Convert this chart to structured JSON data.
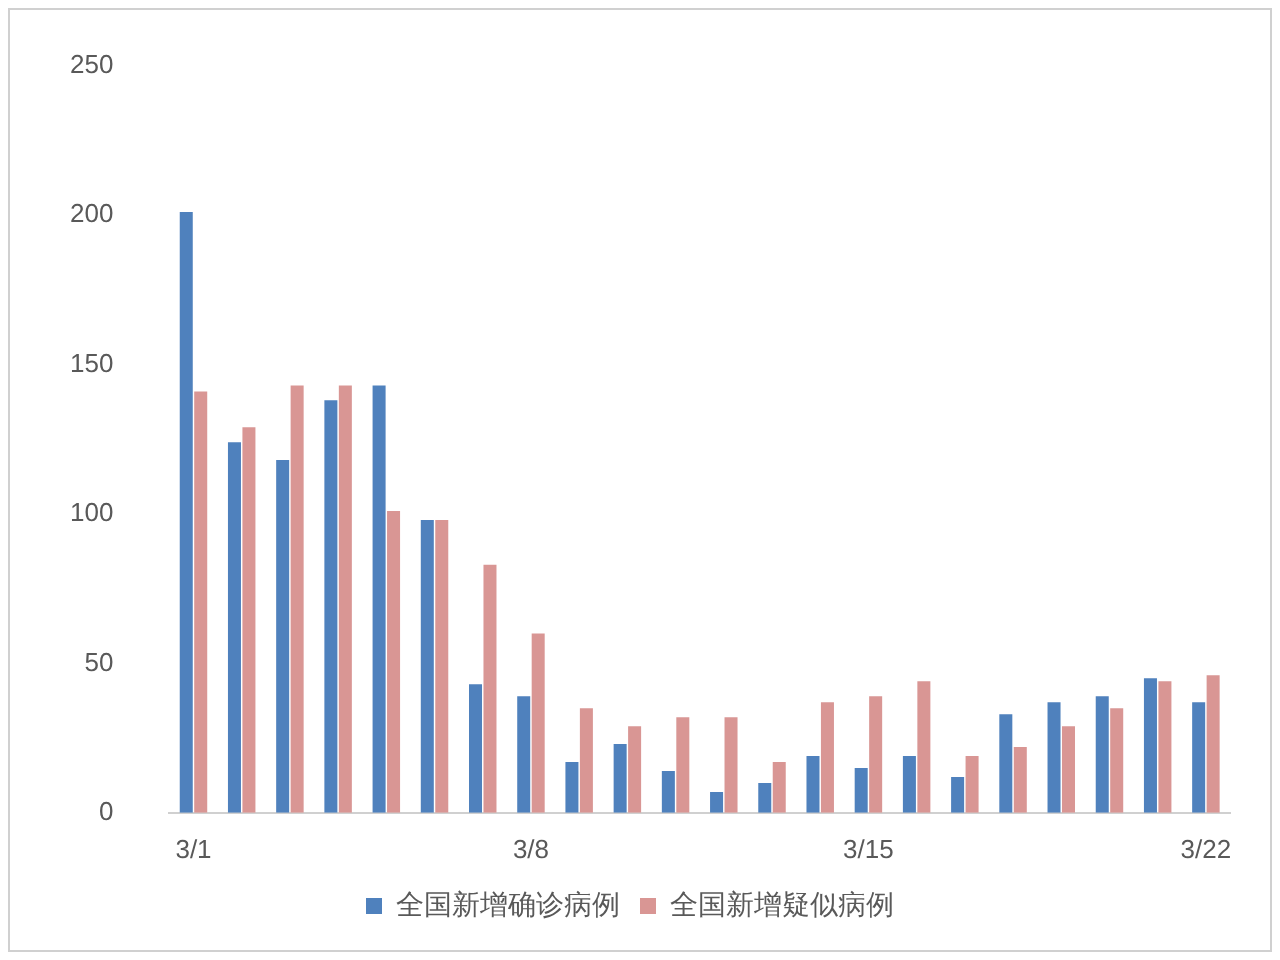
{
  "chart_data": {
    "type": "bar",
    "categories": [
      "3/1",
      null,
      null,
      null,
      null,
      null,
      null,
      "3/8",
      null,
      null,
      null,
      null,
      null,
      null,
      "3/15",
      null,
      null,
      null,
      null,
      null,
      null,
      "3/22"
    ],
    "series": [
      {
        "name": "全国新增确诊病例",
        "color": "#4f81bd",
        "values": [
          201,
          124,
          118,
          138,
          143,
          98,
          43,
          39,
          17,
          23,
          14,
          7,
          10,
          19,
          15,
          19,
          12,
          33,
          37,
          39,
          45,
          37
        ]
      },
      {
        "name": "全国新增疑似病例",
        "color": "#d99694",
        "values": [
          141,
          129,
          143,
          143,
          101,
          98,
          83,
          60,
          35,
          29,
          32,
          32,
          17,
          37,
          39,
          44,
          19,
          22,
          29,
          35,
          44,
          46
        ]
      }
    ],
    "ylim": [
      0,
      250
    ],
    "yticks": [
      0,
      50,
      100,
      150,
      200,
      250
    ],
    "grid": false,
    "legend": "bottom"
  }
}
